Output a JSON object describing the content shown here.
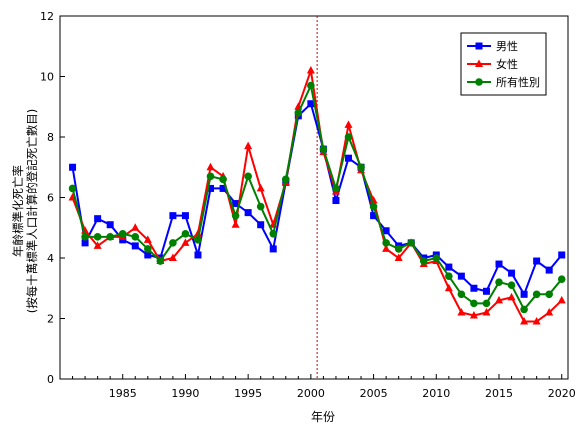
{
  "chart_data": {
    "type": "line",
    "title": "",
    "xlabel": "年份",
    "ylabel_line1": "年齡標準化死亡率",
    "ylabel_line2": "(按每十萬標準人口計算的登記死亡數目)",
    "xlim": [
      1980,
      2020.5
    ],
    "ylim": [
      0,
      12
    ],
    "xticks": [
      1985,
      1990,
      1995,
      2000,
      2005,
      2010,
      2015,
      2020
    ],
    "yticks": [
      0,
      2,
      4,
      6,
      8,
      10,
      12
    ],
    "reference_line_x": 2000.5,
    "legend_position": "top-right",
    "x": [
      1981,
      1982,
      1983,
      1984,
      1985,
      1986,
      1987,
      1988,
      1989,
      1990,
      1991,
      1992,
      1993,
      1994,
      1995,
      1996,
      1997,
      1998,
      1999,
      2000,
      2001,
      2002,
      2003,
      2004,
      2005,
      2006,
      2007,
      2008,
      2009,
      2010,
      2011,
      2012,
      2013,
      2014,
      2015,
      2016,
      2017,
      2018,
      2019,
      2020
    ],
    "series": [
      {
        "name": "男性",
        "color": "#0000ff",
        "marker": "square",
        "values": [
          7.0,
          4.5,
          5.3,
          5.1,
          4.6,
          4.4,
          4.1,
          4.0,
          5.4,
          5.4,
          4.1,
          6.3,
          6.3,
          5.8,
          5.5,
          5.1,
          4.3,
          6.5,
          8.7,
          9.1,
          7.6,
          5.9,
          7.3,
          7.0,
          5.4,
          4.9,
          4.4,
          4.5,
          4.0,
          4.1,
          3.7,
          3.4,
          3.0,
          2.9,
          3.8,
          3.5,
          2.8,
          3.9,
          3.6,
          4.1
        ]
      },
      {
        "name": "女性",
        "color": "#ff0000",
        "marker": "triangle",
        "values": [
          6.0,
          4.9,
          4.4,
          4.7,
          4.7,
          5.0,
          4.6,
          3.9,
          4.0,
          4.5,
          4.8,
          7.0,
          6.7,
          5.1,
          7.7,
          6.3,
          5.1,
          6.5,
          9.0,
          10.2,
          7.5,
          6.2,
          8.4,
          6.9,
          5.9,
          4.3,
          4.0,
          4.5,
          3.8,
          3.9,
          3.0,
          2.2,
          2.1,
          2.2,
          2.6,
          2.7,
          1.9,
          1.9,
          2.2,
          2.6
        ]
      },
      {
        "name": "所有性別",
        "color": "#008000",
        "marker": "circle",
        "values": [
          6.3,
          4.7,
          4.7,
          4.7,
          4.8,
          4.7,
          4.3,
          3.9,
          4.5,
          4.8,
          4.6,
          6.7,
          6.6,
          5.4,
          6.7,
          5.7,
          4.8,
          6.6,
          8.8,
          9.7,
          7.6,
          6.3,
          8.0,
          7.0,
          5.7,
          4.5,
          4.3,
          4.5,
          3.9,
          4.0,
          3.4,
          2.8,
          2.5,
          2.5,
          3.2,
          3.1,
          2.3,
          2.8,
          2.8,
          3.3
        ]
      }
    ]
  }
}
